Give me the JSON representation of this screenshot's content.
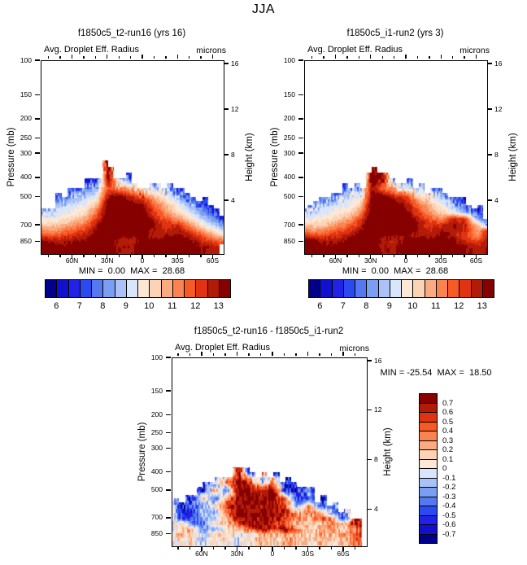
{
  "title": "JJA",
  "palette_note": "16-class blue-red diverging",
  "colors16": [
    "#00008b",
    "#1111cd",
    "#2222e6",
    "#2a4af0",
    "#5578f0",
    "#7b9df2",
    "#aac2f7",
    "#d9e5fb",
    "#fde8d6",
    "#fcd3b5",
    "#fbab80",
    "#fb8351",
    "#f85a26",
    "#e13211",
    "#b21b07",
    "#870000"
  ],
  "chart_data": [
    {
      "type": "filled-contour",
      "title": "f1850c5_t2-run16 (yrs 16)",
      "variable": "Avg. Droplet Eff. Radius",
      "units": "microns",
      "ylabel_left": "Pressure (mb)",
      "ylabel_right": "Height (km)",
      "min": 0.0,
      "max": 28.68,
      "minmax_text": "MIN =  0.00  MAX =  28.68",
      "pressure_ticks": [
        100,
        150,
        200,
        250,
        300,
        400,
        500,
        700,
        850
      ],
      "height_ticks": [
        16,
        12,
        8,
        4
      ],
      "lat_labels": [
        "60N",
        "30N",
        "0",
        "30S",
        "60S"
      ],
      "colorbar_labels": [
        "6",
        "7",
        "8",
        "9",
        "10",
        "11",
        "12",
        "13"
      ],
      "level_start": 6,
      "level_step": 0.5,
      "lats": [
        90,
        80,
        70,
        60,
        50,
        40,
        30,
        20,
        10,
        0,
        -10,
        -20,
        -30,
        -40,
        -50,
        -60,
        -70,
        -80,
        -90
      ],
      "pressures": [
        350,
        400,
        450,
        500,
        550,
        600,
        650,
        700,
        750,
        800,
        850,
        905
      ],
      "top_pressure": [
        560,
        545,
        505,
        465,
        430,
        420,
        355,
        395,
        410,
        430,
        440,
        450,
        470,
        500,
        520,
        555,
        645,
        null,
        null
      ],
      "bottom_pressure": [
        2000,
        2000,
        2000,
        2000,
        2000,
        2000,
        2000,
        2000,
        2000,
        2000,
        2000,
        2000,
        2000,
        2000,
        2000,
        2000,
        880,
        null,
        null
      ],
      "values": [
        [
          null,
          null,
          null,
          null,
          null,
          null,
          13.8,
          null,
          null,
          null,
          null,
          null,
          null,
          null,
          null,
          null,
          null,
          null,
          null
        ],
        [
          null,
          null,
          null,
          null,
          6.5,
          7,
          13.5,
          8.5,
          7,
          7,
          7.5,
          8,
          null,
          null,
          null,
          null,
          null,
          null,
          null
        ],
        [
          null,
          null,
          6.5,
          7,
          8,
          8.5,
          12,
          11,
          10.5,
          9.5,
          9,
          8.5,
          6.8,
          null,
          null,
          null,
          null,
          null,
          null
        ],
        [
          null,
          7,
          8,
          8.5,
          9,
          9.5,
          13,
          13.5,
          12.5,
          12,
          10.5,
          9.5,
          8.5,
          7.5,
          6.5,
          null,
          null,
          null,
          null
        ],
        [
          7.5,
          8.5,
          9,
          9.2,
          9.5,
          10.5,
          13.6,
          13.8,
          13.5,
          13,
          11.5,
          10.5,
          9.5,
          8.5,
          7.5,
          6.8,
          null,
          null,
          null
        ],
        [
          8.5,
          9,
          9.3,
          9.6,
          10,
          11.5,
          13.8,
          14,
          13.8,
          13.5,
          12,
          11,
          10,
          9.2,
          8.3,
          7.2,
          6.5,
          null,
          null
        ],
        [
          9.5,
          9.6,
          9.8,
          10.2,
          10.8,
          12.2,
          14,
          14,
          14,
          13.8,
          12.5,
          11.8,
          11,
          10,
          9,
          8,
          7,
          null,
          null
        ],
        [
          10.5,
          10.3,
          10.5,
          11,
          11.5,
          12.8,
          14,
          14,
          14,
          14,
          13,
          12.3,
          12.5,
          11,
          10,
          9,
          8,
          null,
          null
        ],
        [
          11.5,
          11,
          11.3,
          11.8,
          12.2,
          13.2,
          14,
          14,
          13.8,
          13.5,
          12.8,
          12.6,
          13,
          12,
          11,
          10,
          9,
          null,
          null
        ],
        [
          12.5,
          12,
          12.2,
          12.5,
          12.8,
          13.5,
          13.5,
          13.2,
          13,
          13.2,
          12.8,
          13,
          13.3,
          12.8,
          12,
          11,
          10.2,
          null,
          null
        ],
        [
          13.5,
          13,
          12.8,
          13,
          13.2,
          13.6,
          13.3,
          12.8,
          12.6,
          13.5,
          13.2,
          13.4,
          13.6,
          13.2,
          12.5,
          12,
          11.5,
          null,
          null
        ],
        [
          13.8,
          13.6,
          13.2,
          13.4,
          13.5,
          13.8,
          13.5,
          13,
          12.8,
          13.6,
          13.5,
          13.6,
          13.8,
          13.5,
          13,
          12.8,
          12.5,
          null,
          null
        ]
      ]
    },
    {
      "type": "filled-contour",
      "title": "f1850c5_i1-run2 (yrs 3)",
      "variable": "Avg. Droplet Eff. Radius",
      "units": "microns",
      "ylabel_left": "Pressure (mb)",
      "ylabel_right": "Height (km)",
      "min": 0.0,
      "max": 28.68,
      "minmax_text": "MIN =  0.00  MAX =  28.68",
      "pressure_ticks": [
        100,
        150,
        200,
        250,
        300,
        400,
        500,
        700,
        850
      ],
      "height_ticks": [
        16,
        12,
        8,
        4
      ],
      "lat_labels": [
        "60N",
        "30N",
        "0",
        "30S",
        "60S"
      ],
      "colorbar_labels": [
        "6",
        "7",
        "8",
        "9",
        "10",
        "11",
        "12",
        "13"
      ],
      "level_start": 6,
      "level_step": 0.5,
      "lats": [
        90,
        80,
        70,
        60,
        50,
        40,
        30,
        20,
        10,
        0,
        -10,
        -20,
        -30,
        -40,
        -50,
        -60,
        -70,
        -80,
        -90
      ],
      "pressures": [
        350,
        400,
        450,
        500,
        550,
        600,
        650,
        700,
        750,
        800,
        850,
        905
      ],
      "top_pressure": [
        560,
        540,
        500,
        470,
        430,
        415,
        350,
        385,
        420,
        435,
        445,
        455,
        470,
        500,
        525,
        560,
        640,
        null,
        null
      ],
      "bottom_pressure": [
        2000,
        2000,
        2000,
        2000,
        2000,
        2000,
        2000,
        2000,
        2000,
        2000,
        2000,
        2000,
        2000,
        2000,
        2000,
        2000,
        2000,
        null,
        null
      ],
      "values": [
        [
          null,
          null,
          null,
          null,
          null,
          null,
          13.8,
          null,
          null,
          null,
          null,
          null,
          null,
          null,
          null,
          null,
          null,
          null,
          null
        ],
        [
          null,
          null,
          null,
          null,
          6.5,
          7,
          13.8,
          13,
          7,
          7.2,
          7.5,
          8,
          null,
          null,
          null,
          null,
          null,
          null,
          null
        ],
        [
          null,
          null,
          6.5,
          7,
          8,
          8.5,
          13,
          11.5,
          10.5,
          9.5,
          9,
          8.5,
          6.8,
          null,
          null,
          null,
          null,
          null,
          null
        ],
        [
          null,
          7,
          8,
          8.5,
          9,
          9.5,
          13.2,
          13.5,
          12.5,
          12,
          10.5,
          9.5,
          8.5,
          7.5,
          6.5,
          null,
          null,
          null,
          null
        ],
        [
          7.5,
          8.5,
          9,
          9.2,
          9.5,
          10.2,
          13.6,
          13.8,
          13.5,
          12.8,
          11.5,
          10.5,
          9.5,
          8.5,
          7.5,
          6.8,
          null,
          null,
          null
        ],
        [
          8.5,
          9,
          9.3,
          9.6,
          10,
          11,
          13.8,
          14,
          13.8,
          13.2,
          12,
          11,
          10.2,
          9.5,
          8.5,
          7.2,
          6.5,
          null,
          null
        ],
        [
          9.5,
          9.6,
          9.8,
          10.2,
          10.8,
          12,
          14,
          14,
          14,
          13.8,
          12.5,
          11.8,
          11.2,
          12.6,
          12.2,
          8.5,
          7,
          null,
          null
        ],
        [
          10.5,
          10.3,
          10.5,
          11,
          11.5,
          12.5,
          14,
          14,
          14,
          14,
          13,
          12.3,
          12.5,
          13,
          12.6,
          10.5,
          8,
          null,
          null
        ],
        [
          11.5,
          11,
          11.3,
          11.8,
          12.2,
          13,
          14,
          14,
          13.8,
          13.5,
          12.8,
          12.6,
          13,
          12.8,
          12.4,
          10.8,
          12.8,
          null,
          null
        ],
        [
          12.8,
          12.2,
          12.2,
          12.5,
          12.8,
          13.5,
          13.5,
          13.2,
          13,
          13.2,
          12.8,
          13,
          13.3,
          12.8,
          12.2,
          11.2,
          12.9,
          null,
          null
        ],
        [
          14,
          13.6,
          12.8,
          13,
          13.2,
          13.6,
          13.3,
          12.8,
          12.6,
          13.5,
          13.2,
          13.4,
          13.6,
          13.2,
          12.5,
          12,
          13,
          null,
          null
        ],
        [
          14,
          13.8,
          13.2,
          13.4,
          13.5,
          13.8,
          13.5,
          13,
          12.8,
          13.6,
          13.5,
          13.6,
          13.8,
          13.5,
          13,
          12.8,
          13,
          null,
          null
        ]
      ]
    },
    {
      "type": "filled-contour",
      "title": "f1850c5_t2-run16 - f1850c5_i1-run2",
      "variable": "Avg. Droplet Eff. Radius",
      "units": "microns",
      "ylabel_left": "Pressure (mb)",
      "ylabel_right": "Height (km)",
      "min": -25.54,
      "max": 18.5,
      "minmax_text": "MIN = -25.54  MAX =  18.50",
      "pressure_ticks": [
        100,
        150,
        200,
        250,
        300,
        400,
        500,
        700,
        850
      ],
      "height_ticks": [
        16,
        12,
        8,
        4
      ],
      "lat_labels": [
        "60N",
        "30N",
        "0",
        "30S",
        "60S"
      ],
      "colorbar_labels": [
        "0.7",
        "0.6",
        "0.5",
        "0.4",
        "0.3",
        "0.2",
        "0.1",
        "0",
        "-0.1",
        "-0.2",
        "-0.3",
        "-0.4",
        "-0.5",
        "-0.6",
        "-0.7"
      ],
      "level_start": -0.7,
      "level_step": 0.1,
      "lats": [
        90,
        80,
        70,
        60,
        50,
        40,
        30,
        20,
        10,
        0,
        -10,
        -20,
        -30,
        -40,
        -50,
        -60,
        -70,
        -80,
        -90
      ],
      "pressures": [
        350,
        400,
        450,
        500,
        550,
        600,
        650,
        700,
        750,
        800,
        850,
        905
      ],
      "top_pressure": [
        560,
        545,
        505,
        465,
        430,
        405,
        360,
        400,
        400,
        400,
        440,
        455,
        500,
        550,
        600,
        650,
        700,
        null,
        null
      ],
      "bottom_pressure": [
        2000,
        2000,
        2000,
        2000,
        2000,
        2000,
        2000,
        2000,
        2000,
        2000,
        2000,
        2000,
        2000,
        2000,
        2000,
        2000,
        2000,
        null,
        null
      ],
      "values": [
        [
          null,
          null,
          null,
          null,
          null,
          null,
          0.75,
          null,
          null,
          null,
          null,
          null,
          null,
          null,
          null,
          null,
          null,
          null,
          null
        ],
        [
          null,
          null,
          null,
          null,
          null,
          -0.5,
          0.75,
          -0.6,
          0.4,
          -0.5,
          null,
          null,
          null,
          null,
          null,
          null,
          null,
          null,
          null
        ],
        [
          null,
          null,
          null,
          null,
          -0.3,
          0.4,
          0.75,
          0.6,
          -0.3,
          0.4,
          -0.6,
          -0.5,
          null,
          null,
          null,
          null,
          null,
          null,
          null
        ],
        [
          null,
          null,
          -0.2,
          -0.5,
          0.3,
          -0.4,
          0.75,
          0.75,
          0.6,
          0.75,
          -0.5,
          -0.6,
          -0.3,
          null,
          null,
          null,
          null,
          null,
          null
        ],
        [
          0.4,
          -0.3,
          -0.6,
          0.2,
          -0.5,
          0.3,
          0.75,
          0.75,
          0.75,
          0.75,
          0.4,
          -0.5,
          -0.4,
          -0.6,
          null,
          null,
          null,
          null,
          null
        ],
        [
          0.5,
          -0.6,
          -0.4,
          -0.2,
          0.1,
          0.4,
          0.75,
          0.75,
          0.75,
          0.75,
          0.5,
          -0.3,
          0.3,
          -0.5,
          -0.2,
          null,
          null,
          null,
          null
        ],
        [
          0.6,
          -0.5,
          -0.6,
          -0.1,
          -0.3,
          0.5,
          0.75,
          0.75,
          0.75,
          0.75,
          0.6,
          0.2,
          0.4,
          0.3,
          -0.4,
          -0.3,
          null,
          null,
          null
        ],
        [
          0.3,
          -0.4,
          -0.5,
          -0.2,
          -0.1,
          0.3,
          0.75,
          0.75,
          0.75,
          0.75,
          0.5,
          0.3,
          0.2,
          0.5,
          0.3,
          -0.5,
          0.6,
          null,
          null
        ],
        [
          -0.2,
          0.2,
          -0.3,
          -0.4,
          0.1,
          0.2,
          0.5,
          0.75,
          0.75,
          0.6,
          0.4,
          0.2,
          0.3,
          0.2,
          0.4,
          0.2,
          0.7,
          null,
          null
        ],
        [
          -0.3,
          0.1,
          0.2,
          -0.2,
          -0.3,
          0.1,
          0.2,
          0.4,
          0.75,
          0.5,
          0.75,
          0.3,
          0.1,
          0.2,
          0.3,
          0.1,
          0.4,
          null,
          null
        ],
        [
          -0.1,
          0.2,
          0.1,
          -0.1,
          0.1,
          0.2,
          -0.1,
          0.1,
          0.3,
          0.2,
          0.4,
          0.2,
          0.1,
          0.3,
          0.2,
          0.3,
          0.5,
          null,
          null
        ],
        [
          -0.1,
          0.1,
          0.1,
          -0.1,
          0.1,
          0.1,
          -0.1,
          0.1,
          0.2,
          0.1,
          0.3,
          0.2,
          0.1,
          0.2,
          0.1,
          0.2,
          0.4,
          null,
          null
        ]
      ]
    }
  ]
}
